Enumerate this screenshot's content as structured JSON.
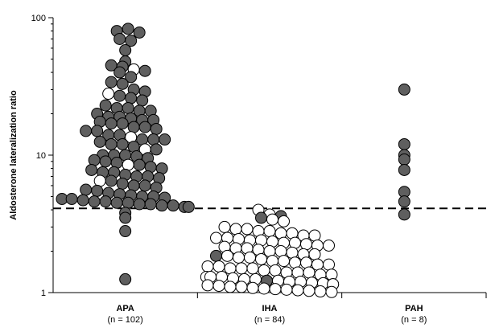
{
  "chart_data": {
    "type": "scatter",
    "title": "",
    "ylabel": "Aldosterone lateralization ratio",
    "xlabel": "",
    "yscale": "log",
    "ylim": [
      1,
      100
    ],
    "yticks": [
      {
        "value": 1,
        "label": "1"
      },
      {
        "value": 10,
        "label": "10"
      },
      {
        "value": 100,
        "label": "100"
      }
    ],
    "threshold": {
      "value": 4.1,
      "style": "dashed"
    },
    "colors": {
      "dark": "#5f5f5f",
      "light": "#ffffff",
      "stroke": "#000000"
    },
    "groups": [
      {
        "name": "APA",
        "n_label": "(n = 102)",
        "points": [
          {
            "y": 80,
            "fill": "dark"
          },
          {
            "y": 83,
            "fill": "dark"
          },
          {
            "y": 78,
            "fill": "dark"
          },
          {
            "y": 70,
            "fill": "dark"
          },
          {
            "y": 68,
            "fill": "dark"
          },
          {
            "y": 58,
            "fill": "dark"
          },
          {
            "y": 48,
            "fill": "dark"
          },
          {
            "y": 45,
            "fill": "dark"
          },
          {
            "y": 44,
            "fill": "dark"
          },
          {
            "y": 42,
            "fill": "light"
          },
          {
            "y": 41,
            "fill": "dark"
          },
          {
            "y": 40,
            "fill": "dark"
          },
          {
            "y": 37,
            "fill": "dark"
          },
          {
            "y": 34,
            "fill": "dark"
          },
          {
            "y": 33,
            "fill": "dark"
          },
          {
            "y": 30,
            "fill": "dark"
          },
          {
            "y": 29,
            "fill": "dark"
          },
          {
            "y": 28,
            "fill": "light"
          },
          {
            "y": 27,
            "fill": "dark"
          },
          {
            "y": 26,
            "fill": "dark"
          },
          {
            "y": 25,
            "fill": "dark"
          },
          {
            "y": 23,
            "fill": "dark"
          },
          {
            "y": 22,
            "fill": "dark"
          },
          {
            "y": 22,
            "fill": "dark"
          },
          {
            "y": 21,
            "fill": "dark"
          },
          {
            "y": 21,
            "fill": "dark"
          },
          {
            "y": 20,
            "fill": "dark"
          },
          {
            "y": 19,
            "fill": "dark"
          },
          {
            "y": 19,
            "fill": "dark"
          },
          {
            "y": 18.5,
            "fill": "dark"
          },
          {
            "y": 18,
            "fill": "dark"
          },
          {
            "y": 18,
            "fill": "dark"
          },
          {
            "y": 17.5,
            "fill": "dark"
          },
          {
            "y": 17,
            "fill": "dark"
          },
          {
            "y": 17,
            "fill": "dark"
          },
          {
            "y": 16,
            "fill": "dark"
          },
          {
            "y": 16,
            "fill": "dark"
          },
          {
            "y": 15.5,
            "fill": "dark"
          },
          {
            "y": 15,
            "fill": "dark"
          },
          {
            "y": 15,
            "fill": "dark"
          },
          {
            "y": 14,
            "fill": "dark"
          },
          {
            "y": 14,
            "fill": "dark"
          },
          {
            "y": 13.5,
            "fill": "light"
          },
          {
            "y": 13,
            "fill": "dark"
          },
          {
            "y": 13,
            "fill": "dark"
          },
          {
            "y": 13,
            "fill": "dark"
          },
          {
            "y": 12.5,
            "fill": "dark"
          },
          {
            "y": 12,
            "fill": "dark"
          },
          {
            "y": 12,
            "fill": "dark"
          },
          {
            "y": 11.5,
            "fill": "dark"
          },
          {
            "y": 11,
            "fill": "light"
          },
          {
            "y": 11,
            "fill": "dark"
          },
          {
            "y": 10,
            "fill": "dark"
          },
          {
            "y": 10,
            "fill": "dark"
          },
          {
            "y": 10,
            "fill": "dark"
          },
          {
            "y": 9.8,
            "fill": "dark"
          },
          {
            "y": 9.5,
            "fill": "dark"
          },
          {
            "y": 9.2,
            "fill": "dark"
          },
          {
            "y": 9,
            "fill": "dark"
          },
          {
            "y": 8.8,
            "fill": "dark"
          },
          {
            "y": 8.5,
            "fill": "light"
          },
          {
            "y": 8.5,
            "fill": "dark"
          },
          {
            "y": 8.2,
            "fill": "dark"
          },
          {
            "y": 8,
            "fill": "dark"
          },
          {
            "y": 7.8,
            "fill": "dark"
          },
          {
            "y": 7.5,
            "fill": "dark"
          },
          {
            "y": 7.5,
            "fill": "dark"
          },
          {
            "y": 7.2,
            "fill": "dark"
          },
          {
            "y": 7,
            "fill": "dark"
          },
          {
            "y": 7,
            "fill": "dark"
          },
          {
            "y": 6.8,
            "fill": "dark"
          },
          {
            "y": 6.5,
            "fill": "light"
          },
          {
            "y": 6.5,
            "fill": "dark"
          },
          {
            "y": 6.2,
            "fill": "dark"
          },
          {
            "y": 6,
            "fill": "dark"
          },
          {
            "y": 6,
            "fill": "dark"
          },
          {
            "y": 5.8,
            "fill": "dark"
          },
          {
            "y": 5.6,
            "fill": "dark"
          },
          {
            "y": 5.5,
            "fill": "dark"
          },
          {
            "y": 5.3,
            "fill": "dark"
          },
          {
            "y": 5.2,
            "fill": "dark"
          },
          {
            "y": 5.1,
            "fill": "dark"
          },
          {
            "y": 5,
            "fill": "dark"
          },
          {
            "y": 5,
            "fill": "dark"
          },
          {
            "y": 4.9,
            "fill": "dark"
          },
          {
            "y": 4.8,
            "fill": "dark"
          },
          {
            "y": 4.8,
            "fill": "dark"
          },
          {
            "y": 4.7,
            "fill": "dark"
          },
          {
            "y": 4.6,
            "fill": "dark"
          },
          {
            "y": 4.6,
            "fill": "dark"
          },
          {
            "y": 4.5,
            "fill": "dark"
          },
          {
            "y": 4.5,
            "fill": "dark"
          },
          {
            "y": 4.4,
            "fill": "dark"
          },
          {
            "y": 4.4,
            "fill": "dark"
          },
          {
            "y": 4.3,
            "fill": "dark"
          },
          {
            "y": 4.3,
            "fill": "dark"
          },
          {
            "y": 4.2,
            "fill": "dark"
          },
          {
            "y": 4.2,
            "fill": "dark"
          },
          {
            "y": 3.8,
            "fill": "dark"
          },
          {
            "y": 3.5,
            "fill": "dark"
          },
          {
            "y": 2.8,
            "fill": "dark"
          },
          {
            "y": 1.25,
            "fill": "dark"
          }
        ]
      },
      {
        "name": "IHA",
        "n_label": "(n = 84)",
        "points": [
          {
            "y": 4.0,
            "fill": "light"
          },
          {
            "y": 3.7,
            "fill": "light"
          },
          {
            "y": 3.6,
            "fill": "dark"
          },
          {
            "y": 3.5,
            "fill": "dark"
          },
          {
            "y": 3.4,
            "fill": "light"
          },
          {
            "y": 3.3,
            "fill": "light"
          },
          {
            "y": 3.0,
            "fill": "light"
          },
          {
            "y": 2.9,
            "fill": "light"
          },
          {
            "y": 2.9,
            "fill": "light"
          },
          {
            "y": 2.8,
            "fill": "light"
          },
          {
            "y": 2.8,
            "fill": "light"
          },
          {
            "y": 2.7,
            "fill": "light"
          },
          {
            "y": 2.7,
            "fill": "light"
          },
          {
            "y": 2.6,
            "fill": "light"
          },
          {
            "y": 2.6,
            "fill": "light"
          },
          {
            "y": 2.5,
            "fill": "light"
          },
          {
            "y": 2.5,
            "fill": "light"
          },
          {
            "y": 2.45,
            "fill": "light"
          },
          {
            "y": 2.4,
            "fill": "light"
          },
          {
            "y": 2.4,
            "fill": "light"
          },
          {
            "y": 2.35,
            "fill": "light"
          },
          {
            "y": 2.3,
            "fill": "light"
          },
          {
            "y": 2.3,
            "fill": "light"
          },
          {
            "y": 2.25,
            "fill": "light"
          },
          {
            "y": 2.2,
            "fill": "light"
          },
          {
            "y": 2.2,
            "fill": "light"
          },
          {
            "y": 2.15,
            "fill": "light"
          },
          {
            "y": 2.1,
            "fill": "light"
          },
          {
            "y": 2.1,
            "fill": "light"
          },
          {
            "y": 2.05,
            "fill": "light"
          },
          {
            "y": 2.0,
            "fill": "light"
          },
          {
            "y": 2.0,
            "fill": "light"
          },
          {
            "y": 1.95,
            "fill": "light"
          },
          {
            "y": 1.9,
            "fill": "light"
          },
          {
            "y": 1.9,
            "fill": "light"
          },
          {
            "y": 1.85,
            "fill": "dark"
          },
          {
            "y": 1.85,
            "fill": "light"
          },
          {
            "y": 1.8,
            "fill": "light"
          },
          {
            "y": 1.8,
            "fill": "light"
          },
          {
            "y": 1.75,
            "fill": "light"
          },
          {
            "y": 1.7,
            "fill": "light"
          },
          {
            "y": 1.7,
            "fill": "light"
          },
          {
            "y": 1.65,
            "fill": "light"
          },
          {
            "y": 1.65,
            "fill": "light"
          },
          {
            "y": 1.6,
            "fill": "light"
          },
          {
            "y": 1.6,
            "fill": "light"
          },
          {
            "y": 1.55,
            "fill": "light"
          },
          {
            "y": 1.55,
            "fill": "light"
          },
          {
            "y": 1.5,
            "fill": "light"
          },
          {
            "y": 1.5,
            "fill": "light"
          },
          {
            "y": 1.5,
            "fill": "light"
          },
          {
            "y": 1.45,
            "fill": "light"
          },
          {
            "y": 1.45,
            "fill": "light"
          },
          {
            "y": 1.4,
            "fill": "light"
          },
          {
            "y": 1.4,
            "fill": "light"
          },
          {
            "y": 1.4,
            "fill": "light"
          },
          {
            "y": 1.35,
            "fill": "light"
          },
          {
            "y": 1.35,
            "fill": "light"
          },
          {
            "y": 1.3,
            "fill": "light"
          },
          {
            "y": 1.3,
            "fill": "light"
          },
          {
            "y": 1.3,
            "fill": "light"
          },
          {
            "y": 1.27,
            "fill": "light"
          },
          {
            "y": 1.25,
            "fill": "light"
          },
          {
            "y": 1.25,
            "fill": "light"
          },
          {
            "y": 1.22,
            "fill": "dark"
          },
          {
            "y": 1.22,
            "fill": "light"
          },
          {
            "y": 1.2,
            "fill": "light"
          },
          {
            "y": 1.2,
            "fill": "light"
          },
          {
            "y": 1.18,
            "fill": "light"
          },
          {
            "y": 1.17,
            "fill": "light"
          },
          {
            "y": 1.15,
            "fill": "light"
          },
          {
            "y": 1.15,
            "fill": "light"
          },
          {
            "y": 1.13,
            "fill": "light"
          },
          {
            "y": 1.12,
            "fill": "light"
          },
          {
            "y": 1.1,
            "fill": "light"
          },
          {
            "y": 1.1,
            "fill": "light"
          },
          {
            "y": 1.08,
            "fill": "light"
          },
          {
            "y": 1.07,
            "fill": "light"
          },
          {
            "y": 1.06,
            "fill": "light"
          },
          {
            "y": 1.05,
            "fill": "light"
          },
          {
            "y": 1.04,
            "fill": "light"
          },
          {
            "y": 1.03,
            "fill": "light"
          },
          {
            "y": 1.02,
            "fill": "light"
          },
          {
            "y": 1.01,
            "fill": "light"
          }
        ]
      },
      {
        "name": "PAH",
        "n_label": "(n = 8)",
        "points": [
          {
            "y": 30,
            "fill": "dark"
          },
          {
            "y": 12,
            "fill": "dark"
          },
          {
            "y": 10,
            "fill": "dark"
          },
          {
            "y": 9.3,
            "fill": "dark"
          },
          {
            "y": 7.8,
            "fill": "dark"
          },
          {
            "y": 5.4,
            "fill": "dark"
          },
          {
            "y": 4.6,
            "fill": "dark"
          },
          {
            "y": 3.7,
            "fill": "dark"
          }
        ]
      }
    ]
  }
}
